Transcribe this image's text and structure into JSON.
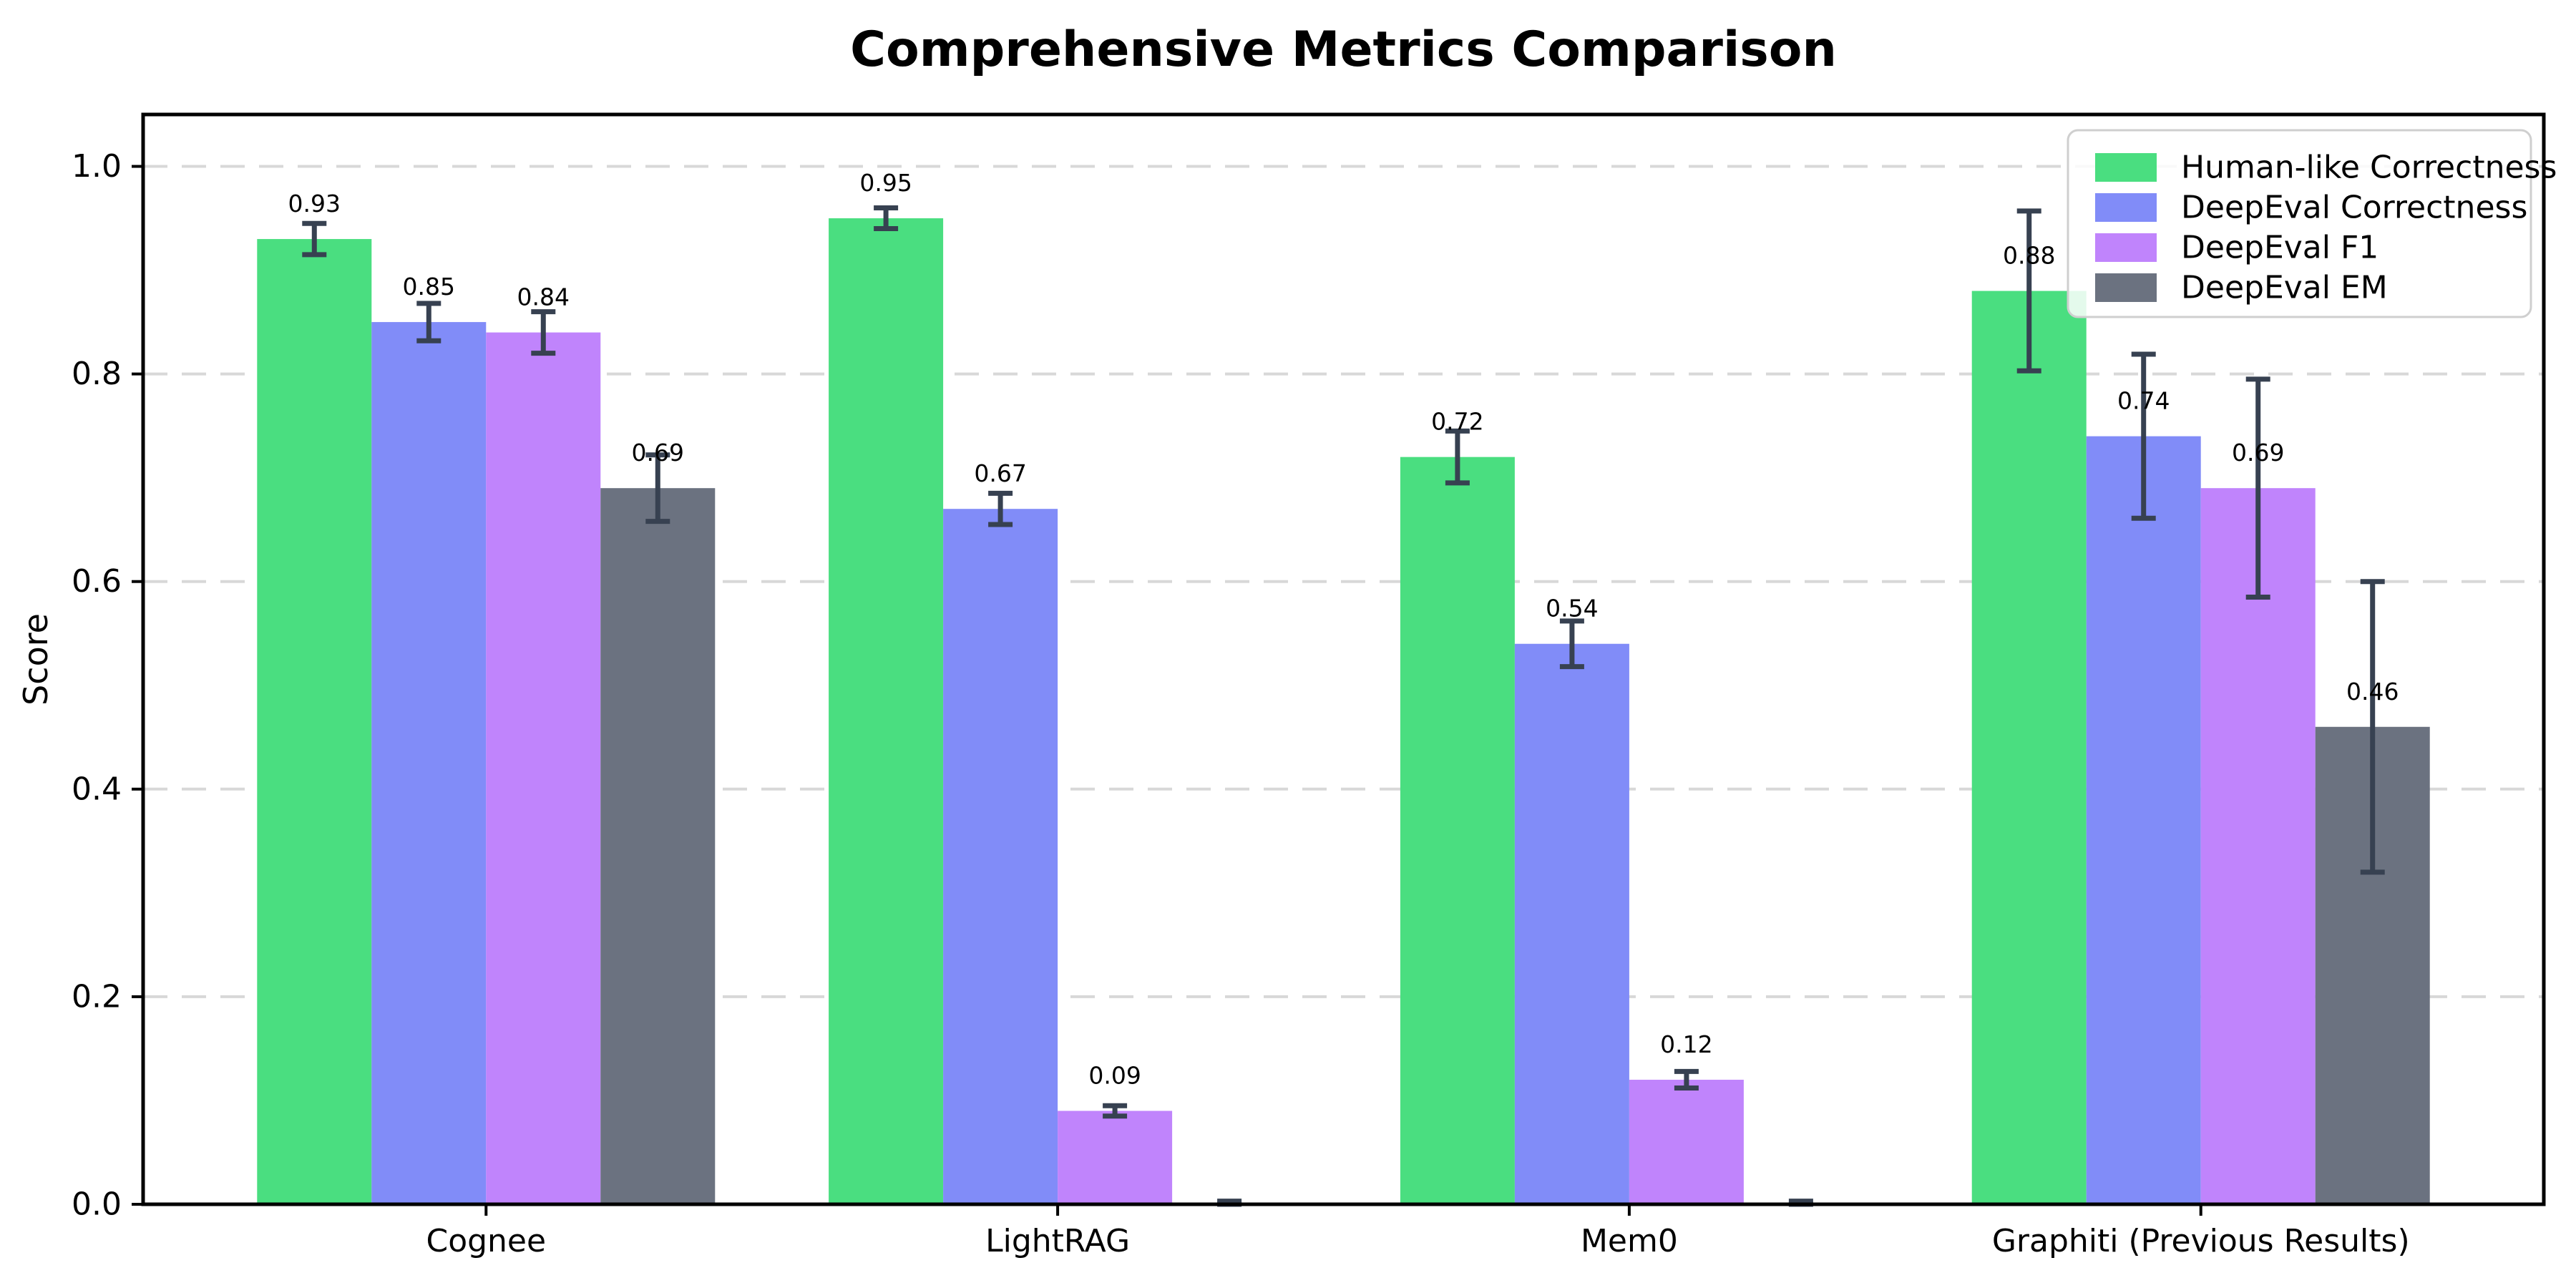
{
  "title": "Comprehensive Metrics Comparison",
  "chart_data": {
    "type": "bar",
    "title": "Comprehensive Metrics Comparison",
    "xlabel": "",
    "ylabel": "Score",
    "ylim": [
      0,
      1.05
    ],
    "yticks": [
      0.0,
      0.2,
      0.4,
      0.6,
      0.8,
      1.0
    ],
    "ytick_labels": [
      "0.0",
      "0.2",
      "0.4",
      "0.6",
      "0.8",
      "1.0"
    ],
    "grid": "horizontal dashed",
    "legend_position": "upper right",
    "categories": [
      "Cognee",
      "LightRAG",
      "Mem0",
      "Graphiti (Previous Results)"
    ],
    "series": [
      {
        "name": "Human-like Correctness",
        "color": "#4ade80",
        "values": [
          0.93,
          0.95,
          0.72,
          0.88
        ],
        "errors": [
          0.015,
          0.01,
          0.025,
          0.077
        ],
        "labels": [
          "0.93",
          "0.95",
          "0.72",
          "0.88"
        ]
      },
      {
        "name": "DeepEval Correctness",
        "color": "#818cf8",
        "values": [
          0.85,
          0.67,
          0.54,
          0.74
        ],
        "errors": [
          0.018,
          0.015,
          0.022,
          0.079
        ],
        "labels": [
          "0.85",
          "0.67",
          "0.54",
          "0.74"
        ]
      },
      {
        "name": "DeepEval F1",
        "color": "#c084fc",
        "values": [
          0.84,
          0.09,
          0.12,
          0.69
        ],
        "errors": [
          0.02,
          0.005,
          0.008,
          0.105
        ],
        "labels": [
          "0.84",
          "0.09",
          "0.12",
          "0.69"
        ]
      },
      {
        "name": "DeepEval EM",
        "color": "#6b7280",
        "values": [
          0.69,
          0.0,
          0.0,
          0.46
        ],
        "errors": [
          0.032,
          0.003,
          0.003,
          0.14
        ],
        "labels": [
          "0.69",
          "",
          "",
          "0.46"
        ]
      }
    ],
    "colors": {
      "error_bar": "#374151",
      "axis": "#000000",
      "grid": "#d8d8d8",
      "tick_text": "#000000",
      "legend_border": "#cfcfcf",
      "background": "#ffffff"
    }
  }
}
